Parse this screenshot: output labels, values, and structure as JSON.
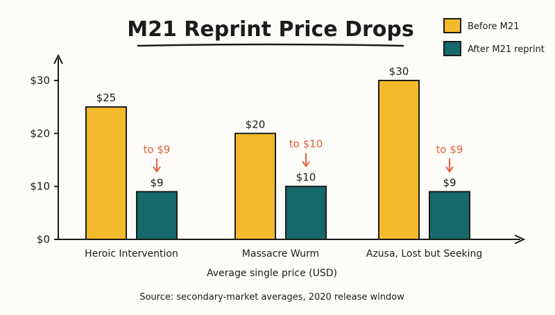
{
  "chart_data": {
    "type": "bar",
    "title": "M21 Reprint Price Drops",
    "categories": [
      "Heroic Intervention",
      "Massacre Wurm",
      "Azusa, Lost but Seeking"
    ],
    "series": [
      {
        "name": "Before M21",
        "values": [
          25,
          20,
          30
        ],
        "labels": [
          "$25",
          "$20",
          "$30"
        ],
        "color": "#f3bb2c"
      },
      {
        "name": "After M21 reprint",
        "values": [
          9,
          10,
          9
        ],
        "labels": [
          "$9",
          "$10",
          "$9"
        ],
        "color": "#15696b"
      }
    ],
    "annotations": [
      "to $9",
      "to $10",
      "to $9"
    ],
    "annotation_color": "#e2603f",
    "xlabel": "Average single price (USD)",
    "ylabel": "",
    "ylim": [
      0,
      30
    ],
    "yticks": [
      0,
      10,
      20,
      30
    ],
    "ytick_labels": [
      "$0",
      "$10",
      "$20",
      "$30"
    ],
    "grid": false,
    "legend": "top-right",
    "source": "Source: secondary-market averages, 2020 release window"
  }
}
